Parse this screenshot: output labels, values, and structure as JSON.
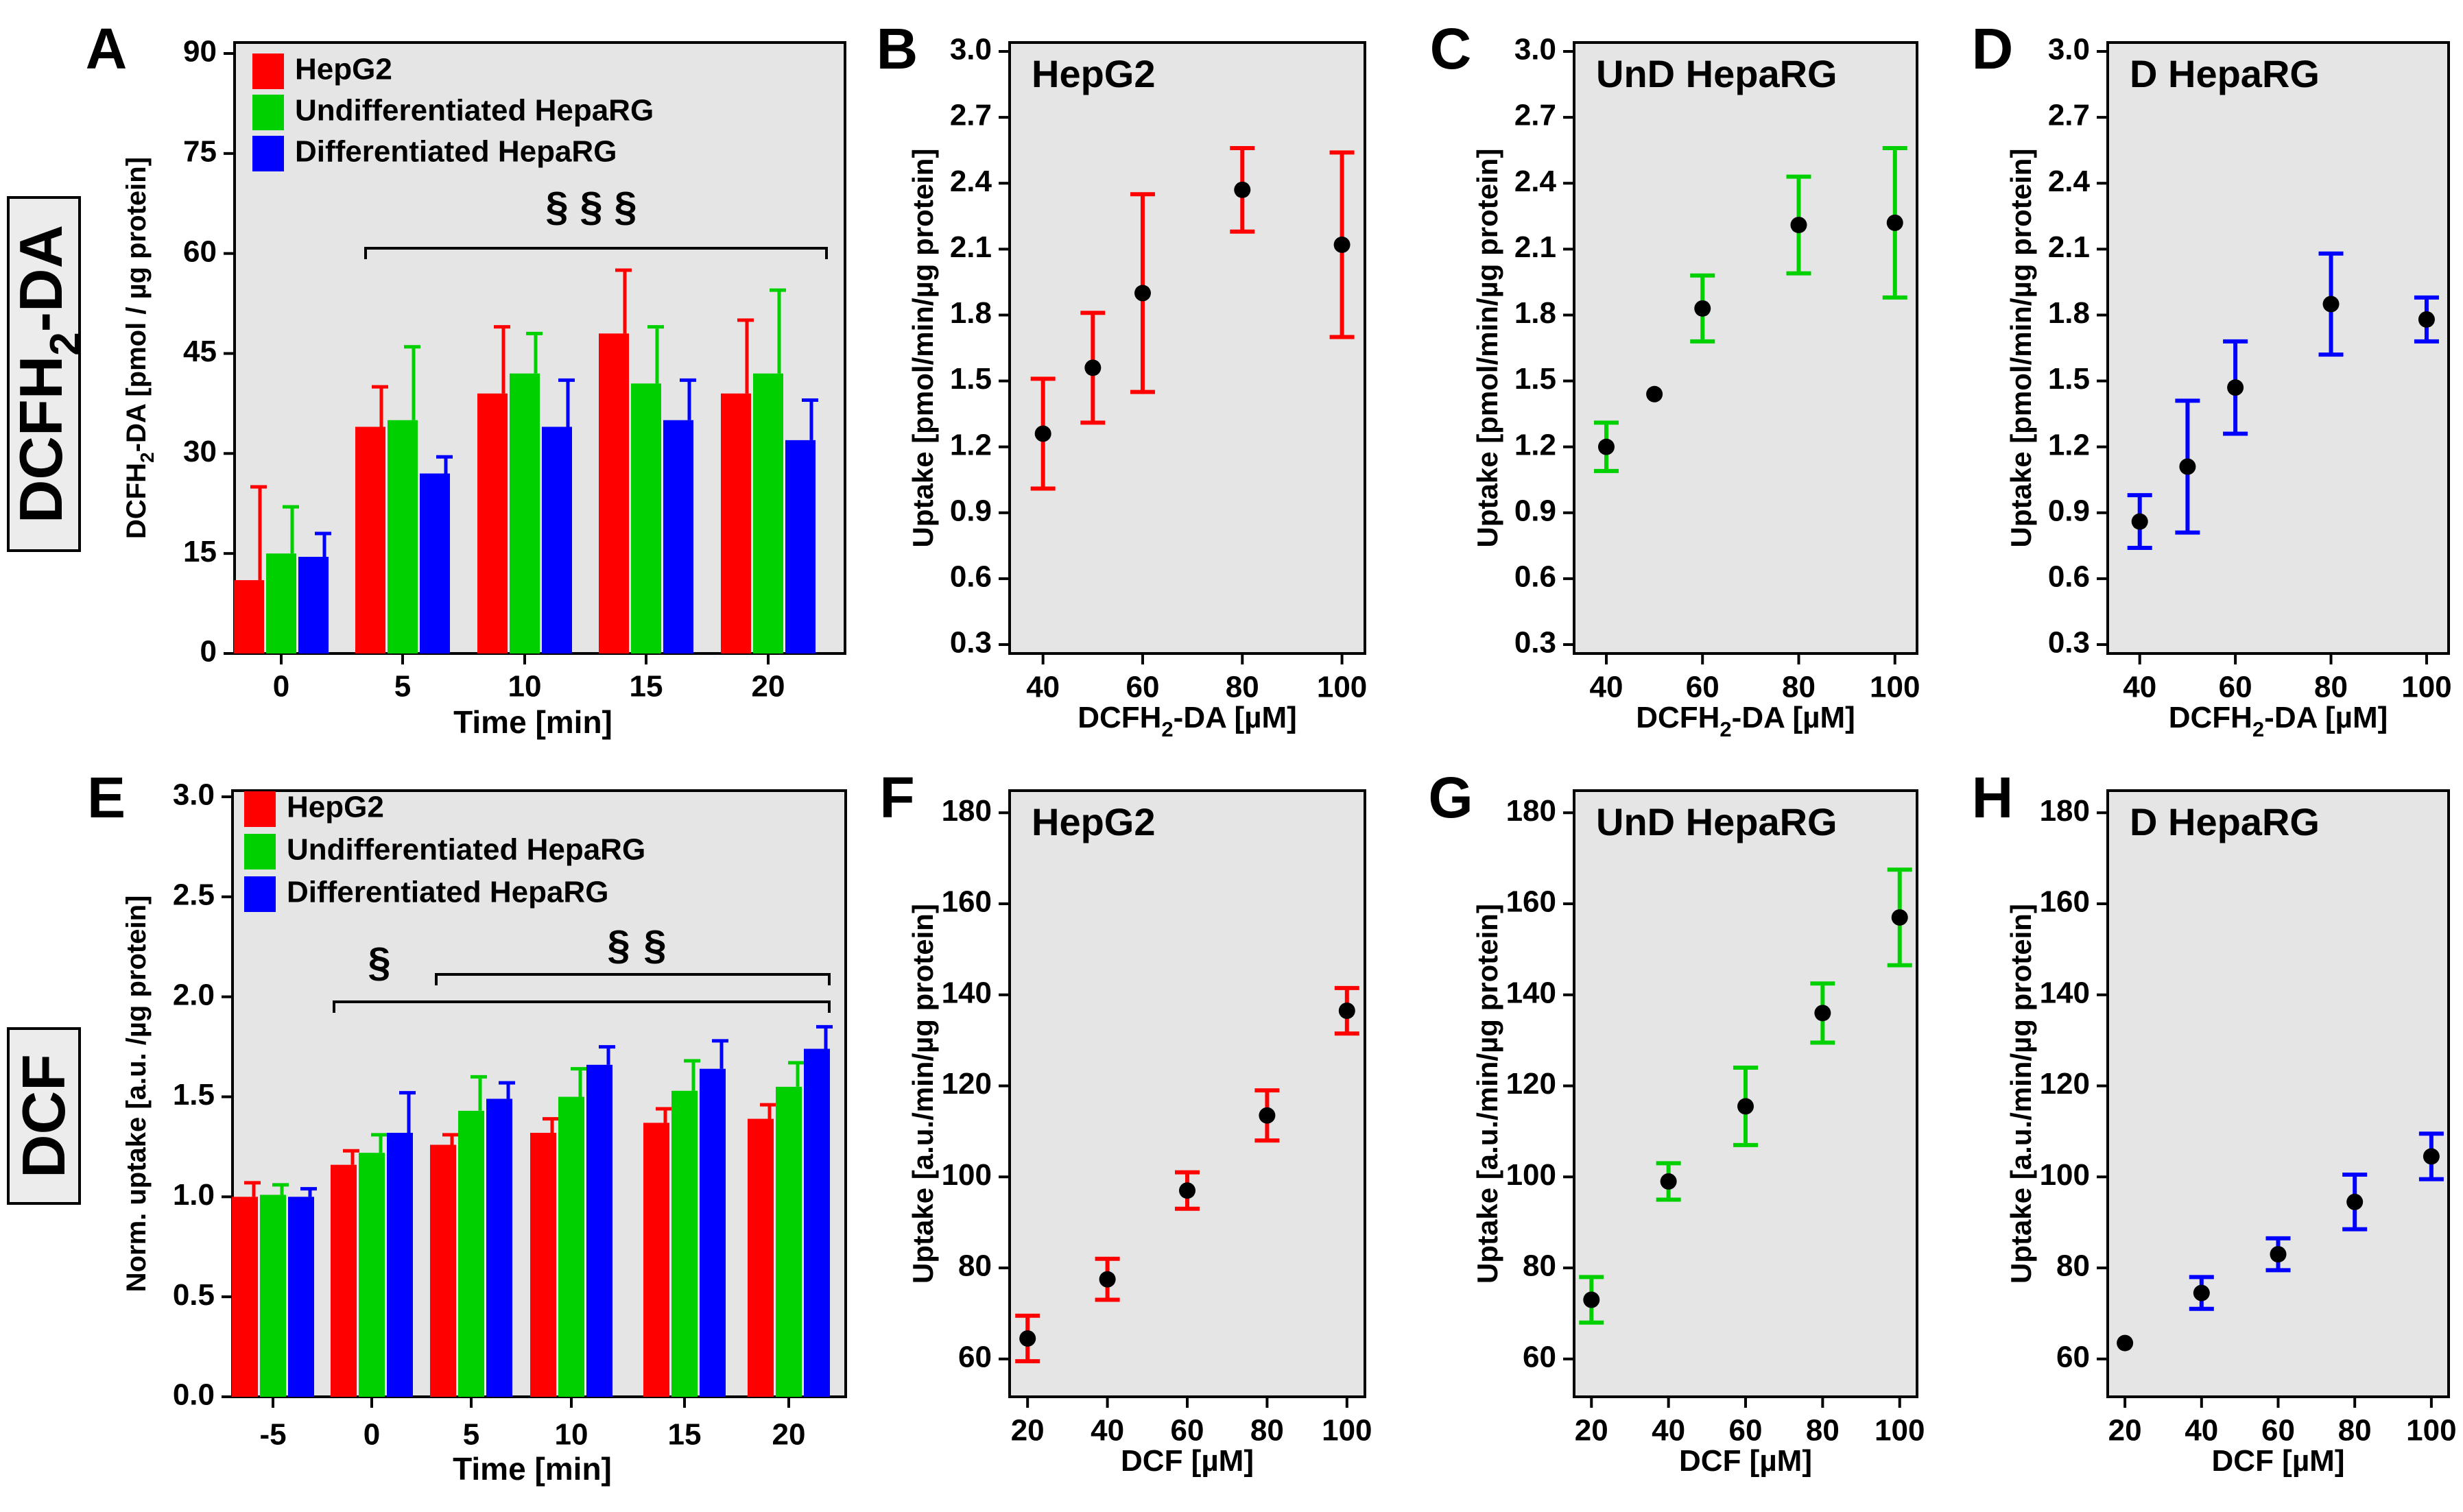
{
  "figure": {
    "row_labels": {
      "top": "DCFH₂-DA",
      "bottom": "DCF"
    },
    "legend_items": [
      "HepG2",
      "Undifferentiated HepaRG",
      "Differentiated HepaRG"
    ]
  },
  "colors": {
    "HepG2": "#ff0000",
    "UnD": "#00d000",
    "D": "#0000ff",
    "panel_bg": "#e5e5e5",
    "marker": "#000000"
  },
  "chart_data": [
    {
      "panel": "A",
      "type": "bar",
      "title": "",
      "xlabel": "Time [min]",
      "ylabel": "DCFH₂-DA [pmol / µg protein]",
      "ylim": [
        0,
        90
      ],
      "yticks": [
        "0",
        "15",
        "30",
        "45",
        "60",
        "75",
        "90"
      ],
      "categories": [
        "0",
        "5",
        "10",
        "15",
        "20"
      ],
      "series": [
        {
          "name": "HepG2",
          "color": "#ff0000",
          "values": [
            11,
            34,
            39,
            48,
            39
          ],
          "errors": [
            14,
            6,
            10,
            9.5,
            11
          ]
        },
        {
          "name": "Undifferentiated HepaRG",
          "color": "#00d000",
          "values": [
            15,
            35,
            42,
            40.5,
            42
          ],
          "errors": [
            7,
            11,
            6,
            8.5,
            12.5
          ]
        },
        {
          "name": "Differentiated HepaRG",
          "color": "#0000ff",
          "values": [
            14.5,
            27,
            34,
            35,
            32
          ],
          "errors": [
            3.5,
            2.5,
            7,
            6,
            6
          ]
        }
      ],
      "annotations": [
        "§",
        "§",
        "§"
      ],
      "legend": "top-left"
    },
    {
      "panel": "B",
      "type": "scatter",
      "title": "HepG2",
      "color": "#ff0000",
      "xlabel": "DCFH₂-DA [µM]",
      "ylabel": "Uptake [pmol/min/µg protein]",
      "ylim": [
        0.3,
        3.0
      ],
      "yticks": [
        "0.3",
        "0.6",
        "0.9",
        "1.2",
        "1.5",
        "1.8",
        "2.1",
        "2.4",
        "2.7",
        "3.0"
      ],
      "xticks": [
        "40",
        "60",
        "80",
        "100"
      ],
      "x": [
        40,
        50,
        60,
        80,
        100
      ],
      "y": [
        1.26,
        1.56,
        1.9,
        2.37,
        2.12
      ],
      "err": [
        0.25,
        0.25,
        0.45,
        0.19,
        0.42
      ]
    },
    {
      "panel": "C",
      "type": "scatter",
      "title": "UnD HepaRG",
      "color": "#00d000",
      "xlabel": "DCFH₂-DA [µM]",
      "ylabel": "Uptake [pmol/min/µg protein]",
      "ylim": [
        0.3,
        3.0
      ],
      "yticks": [
        "0.3",
        "0.6",
        "0.9",
        "1.2",
        "1.5",
        "1.8",
        "2.1",
        "2.4",
        "2.7",
        "3.0"
      ],
      "xticks": [
        "40",
        "60",
        "80",
        "100"
      ],
      "x": [
        40,
        50,
        60,
        80,
        100
      ],
      "y": [
        1.2,
        1.44,
        1.83,
        2.21,
        2.22
      ],
      "err": [
        0.11,
        0.0,
        0.15,
        0.22,
        0.34
      ]
    },
    {
      "panel": "D",
      "type": "scatter",
      "title": "D HepaRG",
      "color": "#0000ff",
      "xlabel": "DCFH₂-DA [µM]",
      "ylabel": "Uptake [pmol/min/µg protein]",
      "ylim": [
        0.3,
        3.0
      ],
      "yticks": [
        "0.3",
        "0.6",
        "0.9",
        "1.2",
        "1.5",
        "1.8",
        "2.1",
        "2.4",
        "2.7",
        "3.0"
      ],
      "xticks": [
        "40",
        "60",
        "80",
        "100"
      ],
      "x": [
        40,
        50,
        60,
        80,
        100
      ],
      "y": [
        0.86,
        1.11,
        1.47,
        1.85,
        1.78
      ],
      "err": [
        0.12,
        0.3,
        0.21,
        0.23,
        0.1
      ]
    },
    {
      "panel": "E",
      "type": "bar",
      "title": "",
      "xlabel": "Time [min]",
      "ylabel": "Norm. uptake [a.u. /µg protein]",
      "ylim": [
        0,
        3.0
      ],
      "yticks": [
        "0.0",
        "0.5",
        "1.0",
        "1.5",
        "2.0",
        "2.5",
        "3.0"
      ],
      "categories": [
        "-5",
        "0",
        "5",
        "10",
        "15",
        "20"
      ],
      "series": [
        {
          "name": "HepG2",
          "color": "#ff0000",
          "values": [
            1.0,
            1.16,
            1.26,
            1.32,
            1.37,
            1.39
          ],
          "errors": [
            0.07,
            0.07,
            0.05,
            0.07,
            0.07,
            0.07
          ]
        },
        {
          "name": "Undifferentiated HepaRG",
          "color": "#00d000",
          "values": [
            1.01,
            1.22,
            1.43,
            1.5,
            1.53,
            1.55
          ],
          "errors": [
            0.05,
            0.09,
            0.17,
            0.14,
            0.15,
            0.12
          ]
        },
        {
          "name": "Differentiated HepaRG",
          "color": "#0000ff",
          "values": [
            1.0,
            1.32,
            1.49,
            1.66,
            1.64,
            1.74
          ],
          "errors": [
            0.04,
            0.2,
            0.08,
            0.09,
            0.14,
            0.11
          ]
        }
      ],
      "annotations": [
        "§",
        "§",
        "§"
      ],
      "legend": "top-left"
    },
    {
      "panel": "F",
      "type": "scatter",
      "title": "HepG2",
      "color": "#ff0000",
      "xlabel": "DCF [µM]",
      "ylabel": "Uptake [a.u./min/µg protein]",
      "ylim": [
        55,
        182
      ],
      "yticks": [
        "60",
        "80",
        "100",
        "120",
        "140",
        "160",
        "180"
      ],
      "xticks": [
        "20",
        "40",
        "60",
        "80",
        "100"
      ],
      "x": [
        20,
        40,
        60,
        80,
        100
      ],
      "y": [
        64.5,
        77.5,
        97,
        113.5,
        136.5
      ],
      "err": [
        5,
        4.5,
        4,
        5.5,
        5
      ]
    },
    {
      "panel": "G",
      "type": "scatter",
      "title": "UnD HepaRG",
      "color": "#00d000",
      "xlabel": "DCF [µM]",
      "ylabel": "Uptake [a.u./min/µg protein]",
      "ylim": [
        55,
        182
      ],
      "yticks": [
        "60",
        "80",
        "100",
        "120",
        "140",
        "160",
        "180"
      ],
      "xticks": [
        "20",
        "40",
        "60",
        "80",
        "100"
      ],
      "x": [
        20,
        40,
        60,
        80,
        100
      ],
      "y": [
        73,
        99,
        115.5,
        136,
        157
      ],
      "err": [
        5,
        4,
        8.5,
        6.5,
        10.5
      ]
    },
    {
      "panel": "H",
      "type": "scatter",
      "title": "D HepaRG",
      "color": "#0000ff",
      "xlabel": "DCF [µM]",
      "ylabel": "Uptake [a.u./min/µg protein]",
      "ylim": [
        55,
        182
      ],
      "yticks": [
        "60",
        "80",
        "100",
        "120",
        "140",
        "160",
        "180"
      ],
      "xticks": [
        "20",
        "40",
        "60",
        "80",
        "100"
      ],
      "x": [
        20,
        40,
        60,
        80,
        100
      ],
      "y": [
        63.5,
        74.5,
        83,
        94.5,
        104.5
      ],
      "err": [
        0,
        3.5,
        3.5,
        6,
        5
      ]
    }
  ]
}
